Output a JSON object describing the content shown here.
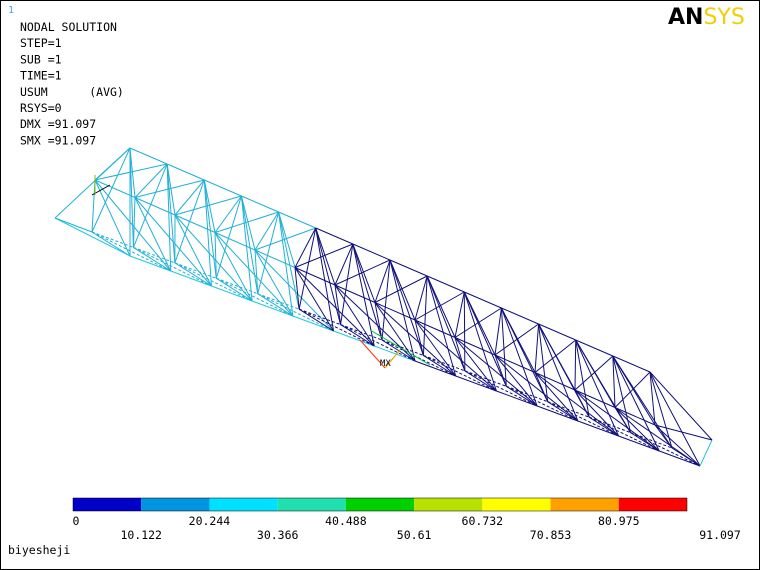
{
  "window_number": "1",
  "info": [
    "NODAL SOLUTION",
    "STEP=1",
    "SUB =1",
    "TIME=1",
    "USUM      (AVG)",
    "RSYS=0",
    "DMX =91.097",
    "SMX =91.097"
  ],
  "logo": [
    "AN",
    "SYS"
  ],
  "markers": {
    "max": "MX"
  },
  "legend": {
    "colors": [
      "#0000c8",
      "#0095e0",
      "#00e0ff",
      "#20e0b0",
      "#00d000",
      "#b8e000",
      "#ffff00",
      "#ffa000",
      "#ff0000"
    ],
    "labels": [
      0,
      10.122,
      20.244,
      30.366,
      40.488,
      50.61,
      60.732,
      70.853,
      80.975,
      91.097
    ]
  },
  "footer": "biyesheji"
}
